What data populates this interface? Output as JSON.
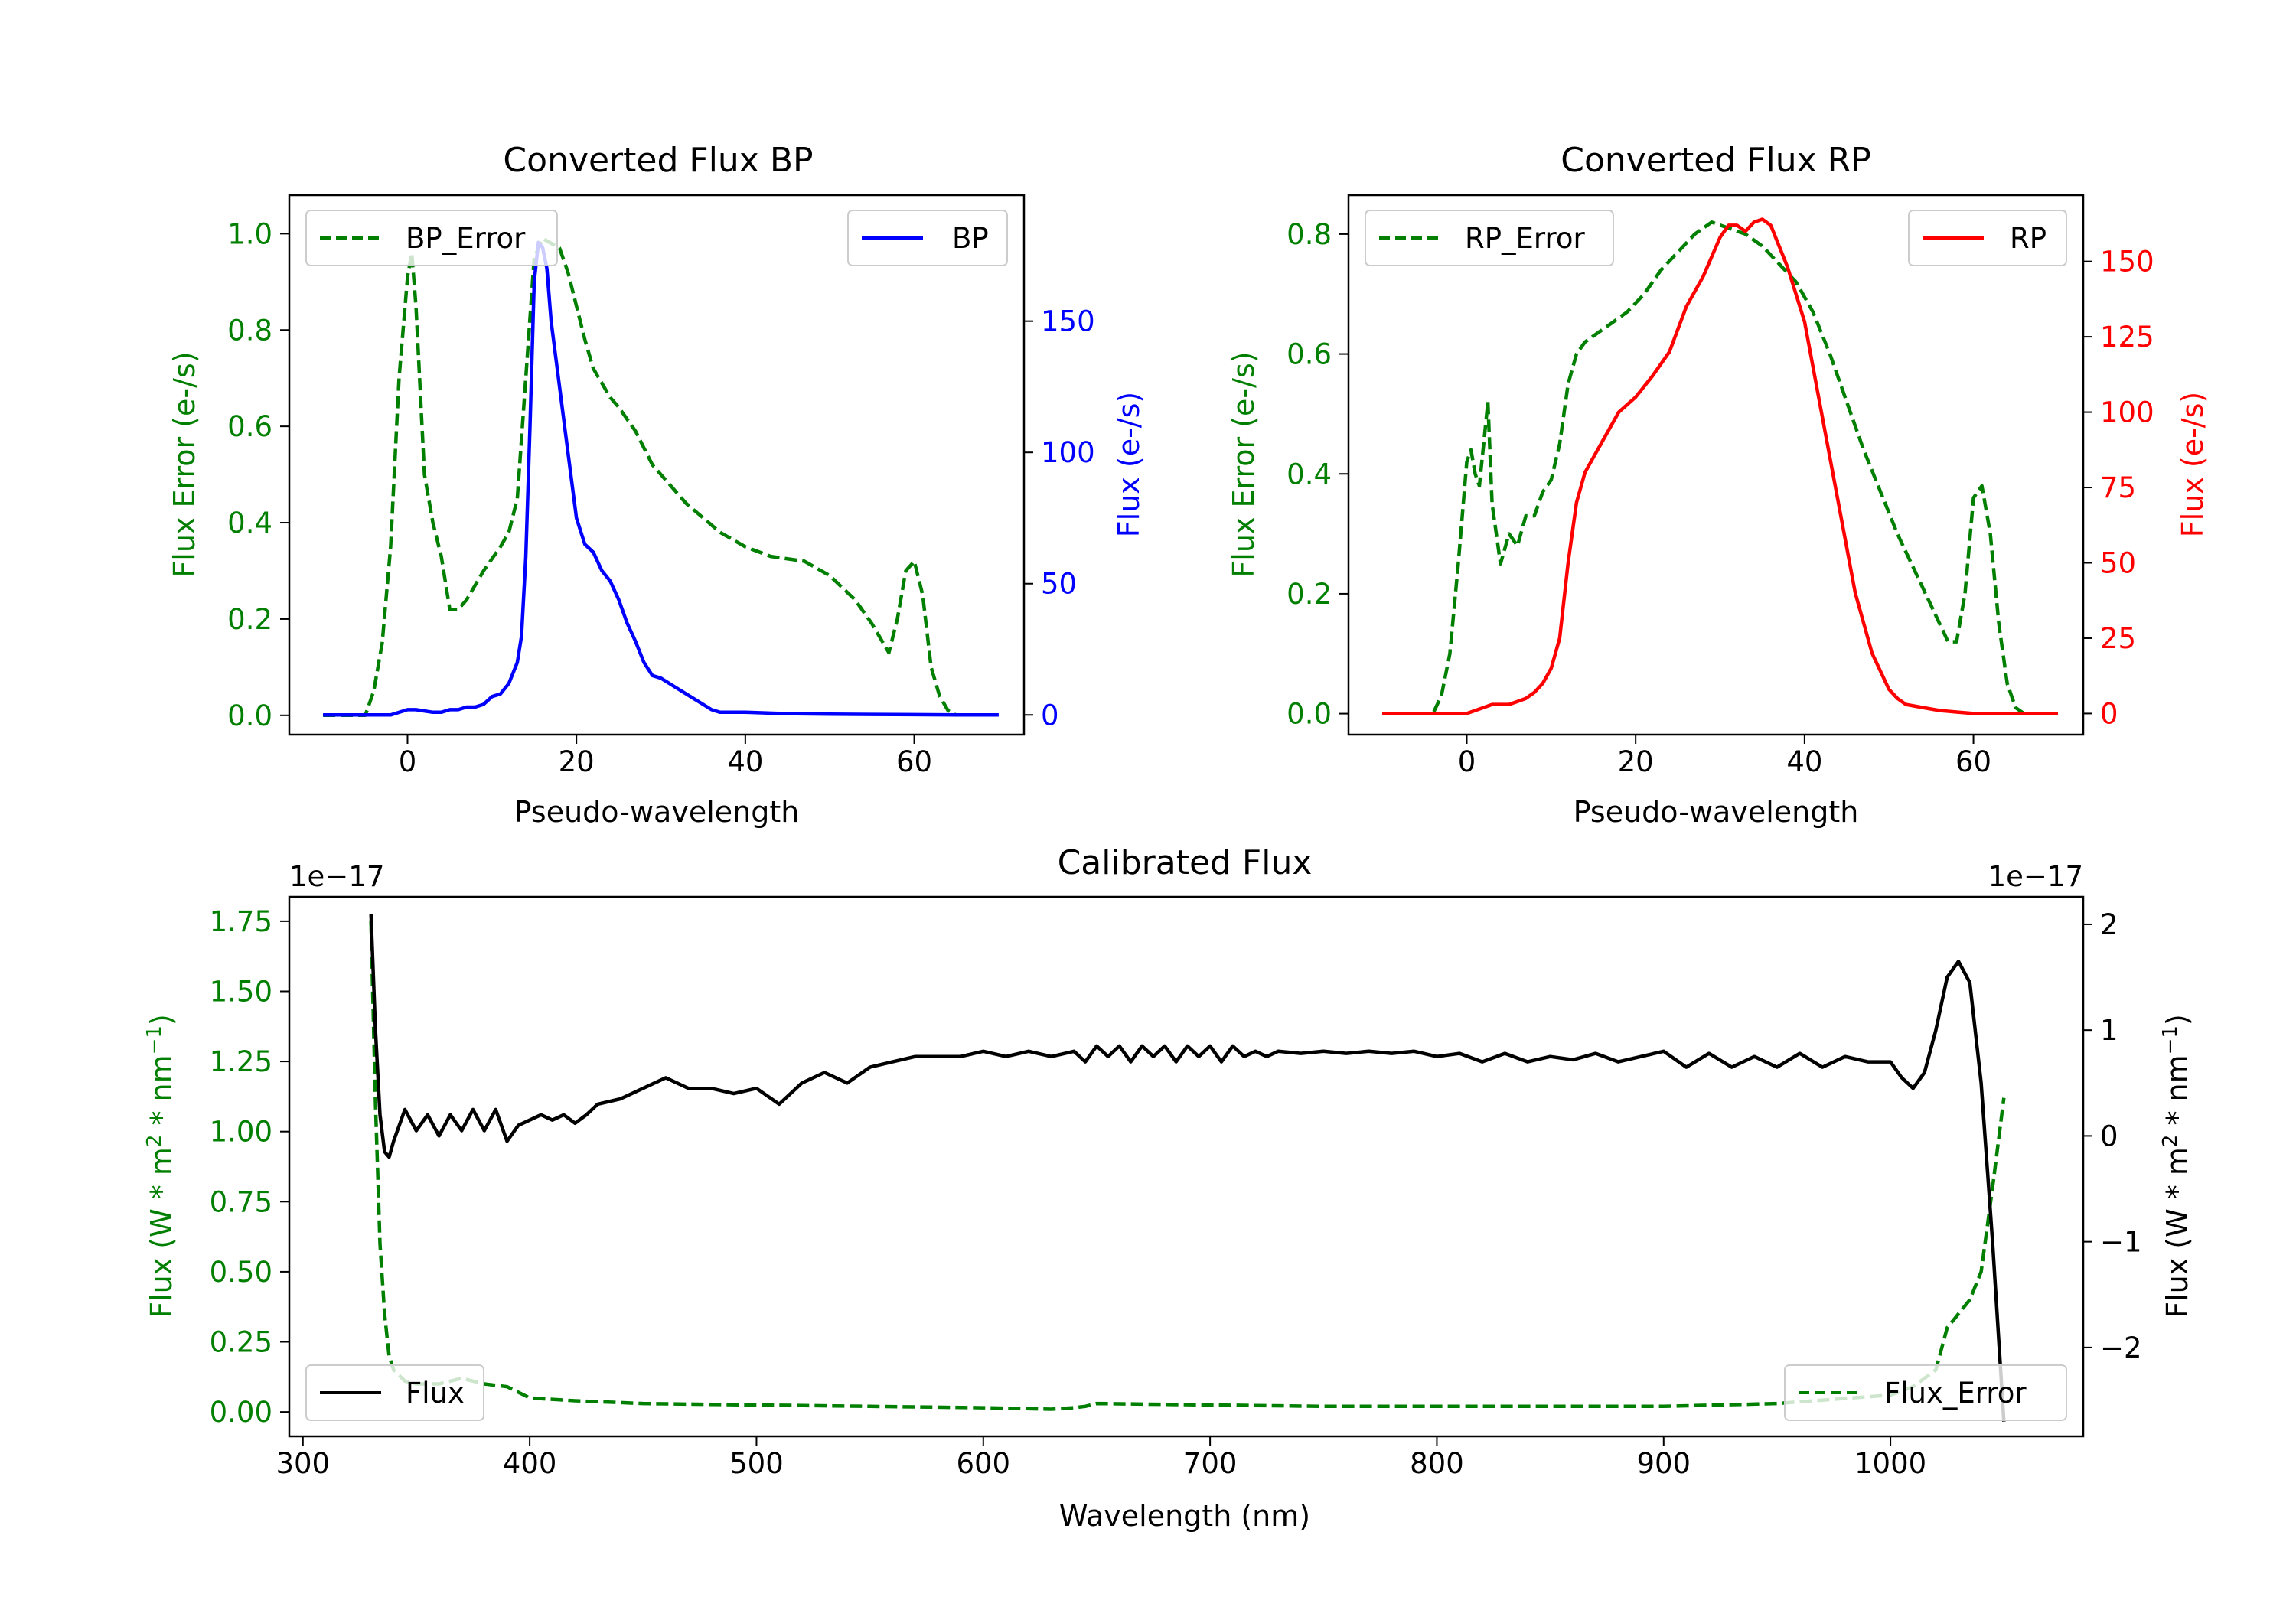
{
  "colors": {
    "green": "#007f00",
    "blue": "#0000ff",
    "red": "#ff0000",
    "black": "#000000"
  },
  "chart_data": [
    {
      "id": "bp",
      "type": "line",
      "title": "Converted Flux BP",
      "xlabel": "Pseudo-wavelength",
      "ylabel_left": "Flux Error (e-/s)",
      "ylabel_right": "Flux (e-/s)",
      "xlim": [
        -14,
        73
      ],
      "ylim_left": [
        -0.04,
        1.08
      ],
      "ylim_right": [
        -7.5,
        198
      ],
      "xticks": [
        "0",
        "20",
        "40",
        "60"
      ],
      "yticks_left": [
        "0.0",
        "0.2",
        "0.4",
        "0.6",
        "0.8",
        "1.0"
      ],
      "yticks_right": [
        "0",
        "50",
        "100",
        "150"
      ],
      "legend_left": {
        "label": "BP_Error",
        "placement": "upper left"
      },
      "legend_right": {
        "label": "BP",
        "placement": "upper right"
      },
      "series": [
        {
          "name": "BP_Error",
          "axis": "left",
          "style": "dashed",
          "color": "green",
          "x": [
            -10,
            -5,
            -4,
            -3,
            -2,
            -1,
            0,
            0.5,
            1,
            2,
            3,
            4,
            5,
            6,
            7,
            9,
            11,
            12,
            13,
            14,
            15,
            16,
            17,
            18,
            19,
            20,
            21,
            22,
            23,
            24,
            25,
            27,
            29,
            31,
            33,
            35,
            37,
            40,
            43,
            47,
            50,
            53,
            55,
            56,
            57,
            58,
            59,
            60,
            61,
            62,
            63,
            64,
            65
          ],
          "y": [
            0.0,
            0.0,
            0.05,
            0.15,
            0.35,
            0.7,
            0.91,
            0.96,
            0.85,
            0.5,
            0.4,
            0.33,
            0.22,
            0.22,
            0.24,
            0.3,
            0.35,
            0.38,
            0.45,
            0.7,
            0.95,
            0.99,
            0.98,
            0.97,
            0.92,
            0.85,
            0.78,
            0.72,
            0.69,
            0.66,
            0.64,
            0.59,
            0.52,
            0.48,
            0.44,
            0.41,
            0.38,
            0.35,
            0.33,
            0.32,
            0.29,
            0.24,
            0.19,
            0.16,
            0.13,
            0.2,
            0.3,
            0.32,
            0.25,
            0.1,
            0.04,
            0.01,
            0.0
          ]
        },
        {
          "name": "BP",
          "axis": "right",
          "style": "solid",
          "color": "blue",
          "x": [
            -10,
            -5,
            -2,
            0,
            1,
            2,
            3,
            4,
            5,
            6,
            7,
            8,
            9,
            10,
            11,
            12,
            13,
            13.5,
            14,
            14.5,
            15,
            15.5,
            16,
            16.5,
            17,
            18,
            19,
            20,
            21,
            22,
            23,
            24,
            25,
            26,
            27,
            28,
            29,
            30,
            31,
            32,
            33,
            34,
            35,
            36,
            37,
            38,
            40,
            45,
            50,
            55,
            60,
            65,
            70
          ],
          "y": [
            0,
            0,
            0,
            2,
            2,
            1.5,
            1,
            1,
            2,
            2,
            3,
            3,
            4,
            7,
            8,
            12,
            20,
            30,
            60,
            110,
            165,
            180,
            178,
            170,
            150,
            125,
            100,
            75,
            65,
            62,
            55,
            51,
            44,
            35,
            28,
            20,
            15,
            14,
            12,
            10,
            8,
            6,
            4,
            2,
            1,
            1,
            1,
            0.5,
            0.3,
            0.2,
            0.1,
            0,
            0
          ]
        }
      ]
    },
    {
      "id": "rp",
      "type": "line",
      "title": "Converted Flux RP",
      "xlabel": "Pseudo-wavelength",
      "ylabel_left": "Flux Error (e-/s)",
      "ylabel_right": "Flux (e-/s)",
      "xlim": [
        -14,
        73
      ],
      "ylim_left": [
        -0.035,
        0.865
      ],
      "ylim_right": [
        -7,
        172
      ],
      "xticks": [
        "0",
        "20",
        "40",
        "60"
      ],
      "yticks_left": [
        "0.0",
        "0.2",
        "0.4",
        "0.6",
        "0.8"
      ],
      "yticks_right": [
        "0",
        "25",
        "50",
        "75",
        "100",
        "125",
        "150"
      ],
      "legend_left": {
        "label": "RP_Error",
        "placement": "upper left"
      },
      "legend_right": {
        "label": "RP",
        "placement": "upper right"
      },
      "series": [
        {
          "name": "RP_Error",
          "axis": "left",
          "style": "dashed",
          "color": "green",
          "x": [
            -10,
            -5,
            -4,
            -3,
            -2,
            -1,
            0,
            0.5,
            1,
            1.5,
            2,
            2.5,
            3,
            4,
            5,
            6,
            7,
            8,
            9,
            10,
            11,
            12,
            13,
            14,
            15,
            17,
            19,
            21,
            23,
            25,
            27,
            29,
            31,
            33,
            35,
            37,
            39,
            41,
            43,
            45,
            47,
            49,
            51,
            53,
            55,
            56,
            57,
            58,
            59,
            60,
            61,
            62,
            63,
            64,
            65,
            66,
            70
          ],
          "y": [
            0.0,
            0.0,
            0.0,
            0.03,
            0.1,
            0.25,
            0.42,
            0.44,
            0.4,
            0.38,
            0.45,
            0.52,
            0.35,
            0.25,
            0.3,
            0.28,
            0.33,
            0.33,
            0.37,
            0.39,
            0.45,
            0.55,
            0.6,
            0.62,
            0.63,
            0.65,
            0.67,
            0.7,
            0.74,
            0.77,
            0.8,
            0.82,
            0.81,
            0.8,
            0.78,
            0.75,
            0.72,
            0.67,
            0.6,
            0.52,
            0.44,
            0.37,
            0.3,
            0.24,
            0.18,
            0.15,
            0.12,
            0.12,
            0.2,
            0.36,
            0.38,
            0.3,
            0.15,
            0.05,
            0.01,
            0.0,
            0.0
          ]
        },
        {
          "name": "RP",
          "axis": "right",
          "style": "solid",
          "color": "red",
          "x": [
            -10,
            -5,
            0,
            1,
            2,
            3,
            4,
            5,
            6,
            7,
            8,
            9,
            10,
            11,
            12,
            13,
            14,
            16,
            18,
            20,
            22,
            24,
            26,
            28,
            30,
            31,
            32,
            33,
            34,
            35,
            36,
            37,
            38,
            40,
            42,
            44,
            46,
            48,
            50,
            51,
            52,
            54,
            56,
            58,
            60,
            62,
            65,
            70
          ],
          "y": [
            0,
            0,
            0,
            1,
            2,
            3,
            3,
            3,
            4,
            5,
            7,
            10,
            15,
            25,
            50,
            70,
            80,
            90,
            100,
            105,
            112,
            120,
            135,
            145,
            158,
            162,
            162,
            160,
            163,
            164,
            162,
            155,
            148,
            130,
            100,
            70,
            40,
            20,
            8,
            5,
            3,
            2,
            1,
            0.5,
            0,
            0,
            0,
            0
          ]
        }
      ]
    },
    {
      "id": "calibrated",
      "type": "line",
      "title": "Calibrated Flux",
      "xlabel": "Wavelength (nm)",
      "ylabel_left_main": "Flux (W * m",
      "ylabel_left_sup1": "2",
      "ylabel_left_mid": " * nm",
      "ylabel_left_sup2": "−1",
      "ylabel_left_end": ")",
      "ylabel_right_main": "Flux (W * m",
      "ylabel_right_sup1": "2",
      "ylabel_right_mid": " * nm",
      "ylabel_right_sup2": "−1",
      "ylabel_right_end": ")",
      "offset_left": "1e−17",
      "offset_right": "1e−17",
      "xlim": [
        294,
        1085
      ],
      "ylim_left": [
        -0.087,
        1.837
      ],
      "ylim_right": [
        -2.84,
        2.26
      ],
      "xticks": [
        "300",
        "400",
        "500",
        "600",
        "700",
        "800",
        "900",
        "1000"
      ],
      "yticks_left": [
        "0.00",
        "0.25",
        "0.50",
        "0.75",
        "1.00",
        "1.25",
        "1.50",
        "1.75"
      ],
      "yticks_right": [
        "−2",
        "−1",
        "0",
        "1",
        "2"
      ],
      "legend_left": {
        "label": "Flux",
        "placement": "lower left"
      },
      "legend_right": {
        "label": "Flux_Error",
        "placement": "lower right"
      },
      "series": [
        {
          "name": "Flux_Error",
          "axis": "left",
          "style": "dashed",
          "color": "green",
          "x": [
            330,
            332,
            334,
            336,
            338,
            340,
            345,
            350,
            360,
            370,
            380,
            390,
            400,
            420,
            450,
            500,
            550,
            600,
            630,
            640,
            645,
            650,
            700,
            750,
            800,
            850,
            900,
            950,
            1000,
            1010,
            1020,
            1025,
            1030,
            1035,
            1040,
            1045,
            1050
          ],
          "y": [
            1.75,
            1.1,
            0.6,
            0.35,
            0.2,
            0.15,
            0.11,
            0.1,
            0.1,
            0.12,
            0.1,
            0.09,
            0.05,
            0.04,
            0.03,
            0.025,
            0.02,
            0.015,
            0.01,
            0.015,
            0.02,
            0.03,
            0.025,
            0.02,
            0.02,
            0.02,
            0.02,
            0.03,
            0.06,
            0.09,
            0.15,
            0.3,
            0.35,
            0.4,
            0.5,
            0.8,
            1.12
          ]
        },
        {
          "name": "Flux",
          "axis": "right",
          "style": "solid",
          "color": "black",
          "x": [
            330,
            332,
            334,
            336,
            338,
            340,
            345,
            350,
            355,
            360,
            365,
            370,
            375,
            380,
            385,
            390,
            395,
            400,
            405,
            410,
            415,
            420,
            425,
            430,
            440,
            450,
            460,
            470,
            480,
            490,
            500,
            510,
            520,
            530,
            540,
            550,
            560,
            570,
            580,
            590,
            600,
            610,
            620,
            630,
            640,
            645,
            650,
            655,
            660,
            665,
            670,
            675,
            680,
            685,
            690,
            695,
            700,
            705,
            710,
            715,
            720,
            725,
            730,
            740,
            750,
            760,
            770,
            780,
            790,
            800,
            810,
            820,
            830,
            840,
            850,
            860,
            870,
            880,
            890,
            900,
            910,
            920,
            930,
            940,
            950,
            960,
            970,
            980,
            990,
            1000,
            1005,
            1010,
            1015,
            1020,
            1025,
            1030,
            1035,
            1040,
            1045,
            1050
          ],
          "y": [
            2.1,
            1.0,
            0.2,
            -0.15,
            -0.2,
            -0.05,
            0.25,
            0.05,
            0.2,
            0.0,
            0.2,
            0.05,
            0.25,
            0.05,
            0.25,
            -0.05,
            0.1,
            0.15,
            0.2,
            0.15,
            0.2,
            0.12,
            0.2,
            0.3,
            0.35,
            0.45,
            0.55,
            0.45,
            0.45,
            0.4,
            0.45,
            0.3,
            0.5,
            0.6,
            0.5,
            0.65,
            0.7,
            0.75,
            0.75,
            0.75,
            0.8,
            0.75,
            0.8,
            0.75,
            0.8,
            0.7,
            0.85,
            0.75,
            0.85,
            0.7,
            0.85,
            0.75,
            0.85,
            0.7,
            0.85,
            0.75,
            0.85,
            0.7,
            0.85,
            0.75,
            0.8,
            0.75,
            0.8,
            0.78,
            0.8,
            0.78,
            0.8,
            0.78,
            0.8,
            0.75,
            0.78,
            0.7,
            0.78,
            0.7,
            0.75,
            0.72,
            0.78,
            0.7,
            0.75,
            0.8,
            0.65,
            0.78,
            0.65,
            0.75,
            0.65,
            0.78,
            0.65,
            0.75,
            0.7,
            0.7,
            0.55,
            0.45,
            0.6,
            1.0,
            1.5,
            1.65,
            1.45,
            0.5,
            -1.0,
            -2.7
          ]
        }
      ]
    }
  ]
}
